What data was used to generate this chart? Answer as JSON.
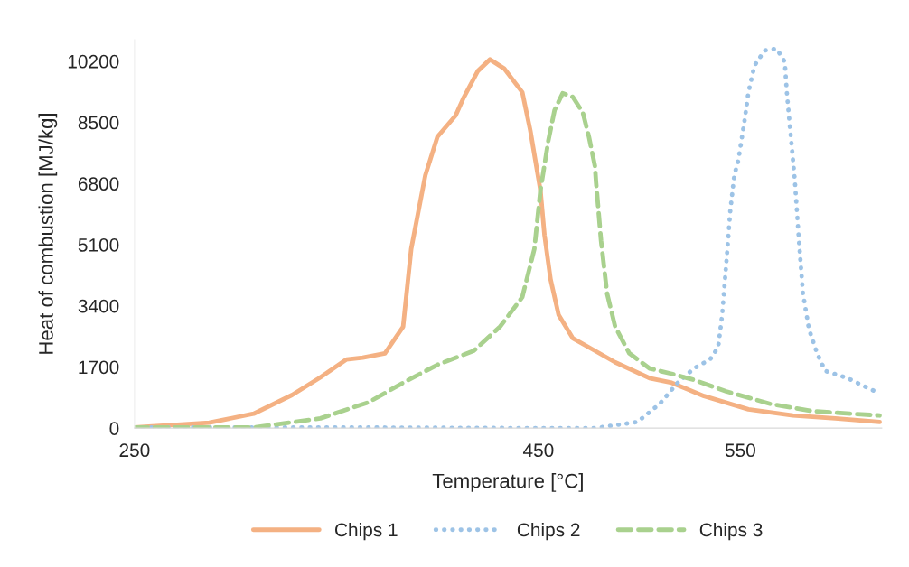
{
  "chart_data": {
    "type": "line",
    "xlabel": "Temperature [°C]",
    "ylabel": "Heat of combustion [MJ/kg]",
    "xlim": [
      250,
      620
    ],
    "xticks": [
      250,
      450,
      550
    ],
    "ylim": [
      0,
      10800
    ],
    "yticks": [
      0,
      1700,
      3400,
      5100,
      6800,
      8500,
      10200
    ],
    "grid": false,
    "legend": "bottom",
    "marker": "none",
    "series": [
      {
        "name": "Chips 1",
        "color": "#f4b183",
        "line_style": "solid",
        "x": [
          250,
          287,
          309,
          328,
          342,
          355,
          363,
          374,
          383,
          387,
          394,
          400,
          409,
          413,
          420,
          426,
          433,
          442,
          446,
          451,
          453,
          456,
          460,
          467,
          478,
          488,
          505,
          516,
          532,
          554,
          576,
          597,
          619
        ],
        "values": [
          20,
          150,
          400,
          920,
          1410,
          1910,
          1960,
          2080,
          2820,
          4980,
          7030,
          8100,
          8690,
          9190,
          9930,
          10250,
          10000,
          9340,
          8270,
          6610,
          5370,
          4140,
          3150,
          2500,
          2150,
          1830,
          1390,
          1260,
          890,
          520,
          350,
          270,
          170
        ]
      },
      {
        "name": "Chips 2",
        "color": "#9dc3e6",
        "line_style": "dotted",
        "x": [
          250,
          348,
          446,
          478,
          499,
          510,
          519,
          527,
          535,
          539,
          541,
          543,
          545,
          547,
          549,
          552,
          554,
          557,
          562,
          568,
          572,
          573,
          575,
          577,
          579,
          581,
          584,
          588,
          592,
          603,
          614,
          619
        ],
        "values": [
          20,
          20,
          0,
          0,
          170,
          670,
          1260,
          1660,
          1910,
          2250,
          3150,
          4560,
          6040,
          7030,
          7450,
          8520,
          9340,
          10080,
          10500,
          10550,
          10180,
          9340,
          8100,
          6860,
          5220,
          3740,
          2750,
          2080,
          1590,
          1390,
          1090,
          970
        ]
      },
      {
        "name": "Chips 3",
        "color": "#a9d18e",
        "line_style": "dashed",
        "x": [
          250,
          309,
          342,
          366,
          383,
          400,
          418,
          431,
          442,
          448,
          451,
          455,
          458,
          462,
          467,
          472,
          475,
          478,
          478.5,
          481,
          484,
          488,
          495,
          505,
          516,
          527,
          543,
          565,
          586,
          619
        ],
        "values": [
          20,
          20,
          270,
          720,
          1260,
          1760,
          2150,
          2820,
          3640,
          4980,
          6610,
          8020,
          8840,
          9310,
          9210,
          8770,
          8100,
          7280,
          6860,
          5220,
          3740,
          2820,
          2080,
          1660,
          1510,
          1340,
          1020,
          670,
          470,
          350
        ]
      }
    ]
  }
}
